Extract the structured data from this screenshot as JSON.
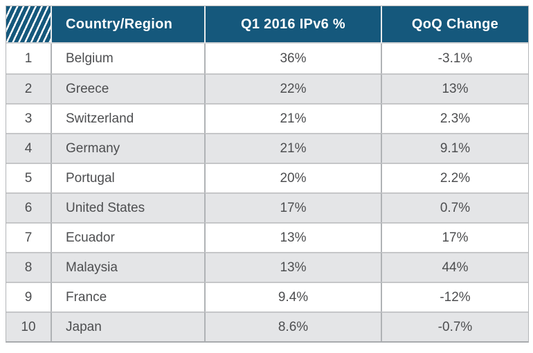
{
  "table": {
    "header": {
      "country": "Country/Region",
      "ipv6": "Q1 2016 IPv6 %",
      "qoq": "QoQ Change"
    },
    "rows": [
      {
        "rank": "1",
        "country": "Belgium",
        "ipv6": "36%",
        "qoq": "-3.1%"
      },
      {
        "rank": "2",
        "country": "Greece",
        "ipv6": "22%",
        "qoq": "13%"
      },
      {
        "rank": "3",
        "country": "Switzerland",
        "ipv6": "21%",
        "qoq": "2.3%"
      },
      {
        "rank": "4",
        "country": "Germany",
        "ipv6": "21%",
        "qoq": "9.1%"
      },
      {
        "rank": "5",
        "country": "Portugal",
        "ipv6": "20%",
        "qoq": "2.2%"
      },
      {
        "rank": "6",
        "country": "United States",
        "ipv6": "17%",
        "qoq": "0.7%"
      },
      {
        "rank": "7",
        "country": "Ecuador",
        "ipv6": "13%",
        "qoq": "17%"
      },
      {
        "rank": "8",
        "country": "Malaysia",
        "ipv6": "13%",
        "qoq": "44%"
      },
      {
        "rank": "9",
        "country": "France",
        "ipv6": "9.4%",
        "qoq": "-12%"
      },
      {
        "rank": "10",
        "country": "Japan",
        "ipv6": "8.6%",
        "qoq": "-0.7%"
      }
    ]
  },
  "colors": {
    "header_bg": "#15587C",
    "header_text": "#FFFFFF",
    "row_alt_bg": "#E4E5E7",
    "body_text": "#4D4E50",
    "grid_border": "#B3B5B8",
    "hatch_stripe": "#FFFFFF"
  },
  "chart_data": {
    "type": "table",
    "columns": [
      "",
      "Country/Region",
      "Q1 2016 IPv6 %",
      "QoQ Change"
    ],
    "rows": [
      [
        1,
        "Belgium",
        36,
        -3.1
      ],
      [
        2,
        "Greece",
        22,
        13
      ],
      [
        3,
        "Switzerland",
        21,
        2.3
      ],
      [
        4,
        "Germany",
        21,
        9.1
      ],
      [
        5,
        "Portugal",
        20,
        2.2
      ],
      [
        6,
        "United States",
        17,
        0.7
      ],
      [
        7,
        "Ecuador",
        13,
        17
      ],
      [
        8,
        "Malaysia",
        13,
        44
      ],
      [
        9,
        "France",
        9.4,
        -12
      ],
      [
        10,
        "Japan",
        8.6,
        -0.7
      ]
    ]
  }
}
